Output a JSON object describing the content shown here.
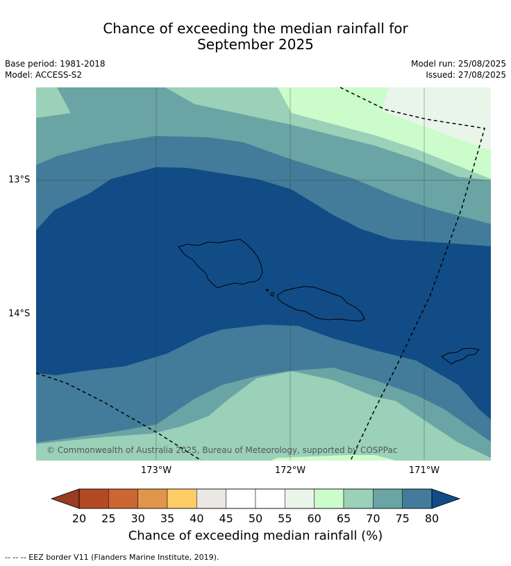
{
  "title_line1": "Chance of exceeding the median rainfall for",
  "title_line2": "September 2025",
  "info_left": [
    "Base period: 1981-2018",
    "Model: ACCESS-S2"
  ],
  "info_right": [
    "Model run: 25/08/2025",
    "Issued: 27/08/2025"
  ],
  "lat_labels": [
    "13°S",
    "14°S"
  ],
  "lon_labels": [
    "173°W",
    "172°W",
    "171°W"
  ],
  "copyright": "© Commonwealth of Australia 2025, Bureau of Meteorology, supported by COSPPac",
  "colorbar": {
    "ticks": [
      "20",
      "25",
      "30",
      "35",
      "40",
      "45",
      "50",
      "55",
      "60",
      "65",
      "70",
      "75",
      "80"
    ],
    "colors": [
      "#b34a25",
      "#cc6633",
      "#e0954a",
      "#fdcc66",
      "#ebe8e3",
      "#ffffff",
      "#ffffff",
      "#eaf5ea",
      "#ccfccc",
      "#9bd0b9",
      "#6aa4a4",
      "#437c9a"
    ],
    "under_color": "#993d1f",
    "over_color": "#124c87",
    "title": "Chance of exceeding median rainfall (%)"
  },
  "footer": "--  --  -- EEZ border V11 (Flanders Marine Institute, 2019)."
}
